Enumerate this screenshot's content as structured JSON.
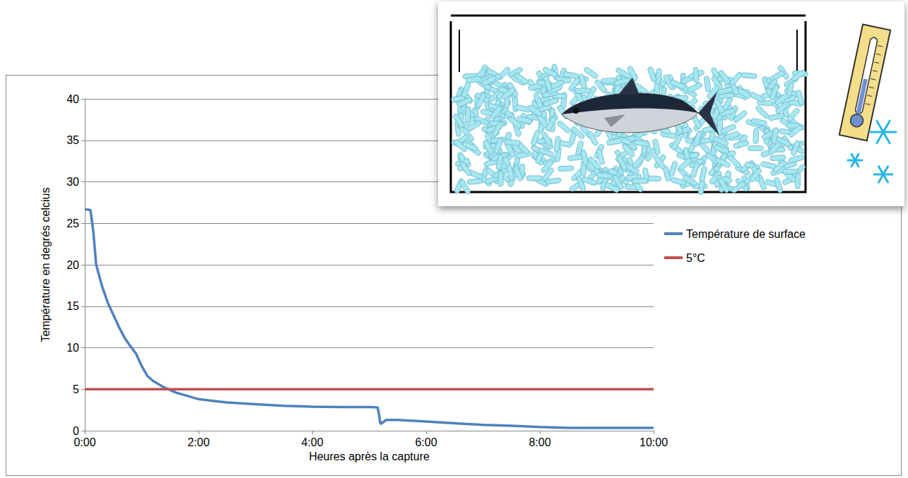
{
  "chart_data": {
    "type": "line",
    "x_label": "Heures après la capture",
    "y_label": "Température en degrés celcius",
    "xlim": [
      0,
      10
    ],
    "xticks": [
      {
        "value": 0,
        "label": "0:00"
      },
      {
        "value": 2,
        "label": "2:00"
      },
      {
        "value": 4,
        "label": "4:00"
      },
      {
        "value": 6,
        "label": "6:00"
      },
      {
        "value": 8,
        "label": "8:00"
      },
      {
        "value": 10,
        "label": "10:00"
      }
    ],
    "ylim": [
      0,
      40
    ],
    "yticks": [
      0,
      5,
      10,
      15,
      20,
      25,
      30,
      35,
      40
    ],
    "grid": true,
    "legend": "right",
    "series": [
      {
        "name": "Température de surface",
        "color": "#4f81bd",
        "x": [
          0,
          0.1,
          0.15,
          0.2,
          0.3,
          0.4,
          0.5,
          0.6,
          0.7,
          0.8,
          0.9,
          1.0,
          1.1,
          1.2,
          1.3,
          1.4,
          1.5,
          1.6,
          1.8,
          2.0,
          2.25,
          2.5,
          3.0,
          3.5,
          4.0,
          4.5,
          5.0,
          5.15,
          5.2,
          5.3,
          5.5,
          6.0,
          6.5,
          7.0,
          7.5,
          8.0,
          8.5,
          9.0,
          9.5,
          10.0
        ],
        "values": [
          26.7,
          26.6,
          24,
          20,
          17.5,
          15.5,
          14,
          12.5,
          11.2,
          10.2,
          9.3,
          7.8,
          6.6,
          6.0,
          5.6,
          5.2,
          4.9,
          4.6,
          4.2,
          3.8,
          3.6,
          3.4,
          3.2,
          3.0,
          2.9,
          2.85,
          2.85,
          2.8,
          0.8,
          1.3,
          1.3,
          1.1,
          0.9,
          0.7,
          0.6,
          0.45,
          0.35,
          0.35,
          0.35,
          0.35
        ]
      },
      {
        "name": "5°C",
        "color": "#c0504d",
        "x": [
          0,
          10
        ],
        "values": [
          5,
          5
        ]
      }
    ]
  }
}
